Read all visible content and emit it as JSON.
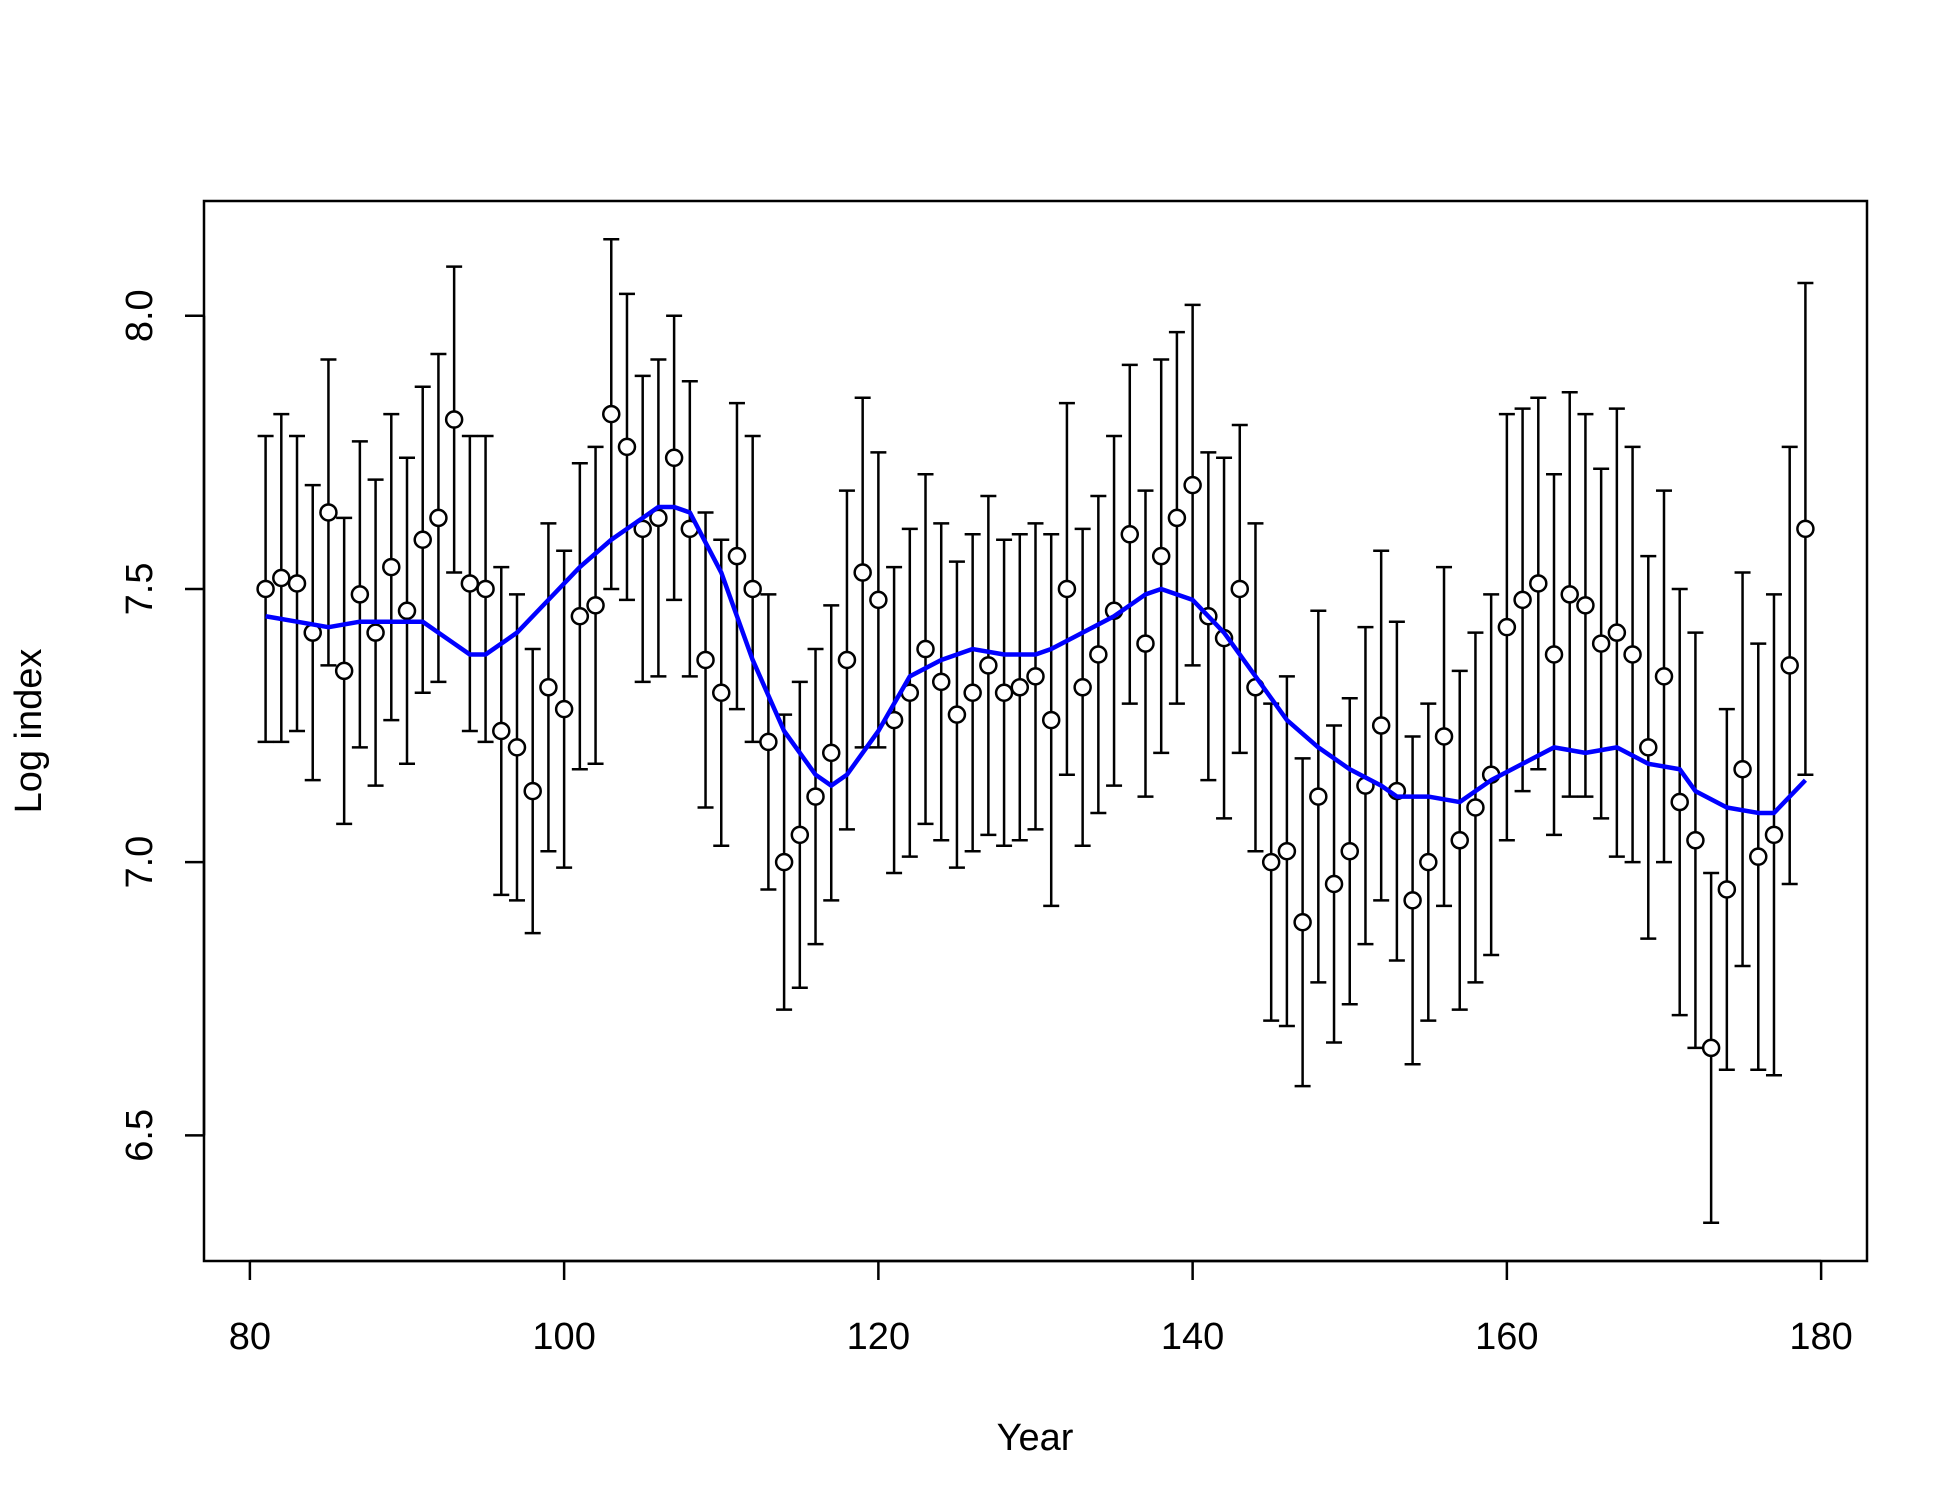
{
  "chart_data": {
    "type": "scatter",
    "xlabel": "Year",
    "ylabel": "Log index",
    "xlim": [
      77.08,
      182.92
    ],
    "ylim": [
      6.27,
      8.21
    ],
    "xticks": [
      80,
      100,
      120,
      140,
      160,
      180
    ],
    "yticks": [
      {
        "value": 6.5,
        "label": "6.5"
      },
      {
        "value": 7,
        "label": "7.0"
      },
      {
        "value": 7.5,
        "label": "7.5"
      },
      {
        "value": 8,
        "label": "8.0"
      }
    ],
    "series": [
      {
        "type": "errorbar",
        "color": "#000000",
        "marker_fill": "#ffffff",
        "x": [
          81,
          82,
          83,
          84,
          85,
          86,
          87,
          88,
          89,
          90,
          91,
          92,
          93,
          94,
          95,
          96,
          97,
          98,
          99,
          100,
          101,
          102,
          103,
          104,
          105,
          106,
          107,
          108,
          109,
          110,
          111,
          112,
          113,
          114,
          115,
          116,
          117,
          118,
          119,
          120,
          121,
          122,
          123,
          124,
          125,
          126,
          127,
          128,
          129,
          130,
          131,
          132,
          133,
          134,
          135,
          136,
          137,
          138,
          139,
          140,
          141,
          142,
          143,
          144,
          145,
          146,
          147,
          148,
          149,
          150,
          151,
          152,
          153,
          154,
          155,
          156,
          157,
          158,
          159,
          160,
          161,
          162,
          163,
          164,
          165,
          166,
          167,
          168,
          169,
          170,
          171,
          172,
          173,
          174,
          175,
          176,
          177,
          178,
          179
        ],
        "values": [
          7.5,
          7.52,
          7.51,
          7.42,
          7.64,
          7.35,
          7.49,
          7.42,
          7.54,
          7.46,
          7.59,
          7.63,
          7.81,
          7.51,
          7.5,
          7.24,
          7.21,
          7.13,
          7.32,
          7.28,
          7.45,
          7.47,
          7.82,
          7.76,
          7.61,
          7.63,
          7.74,
          7.61,
          7.37,
          7.31,
          7.56,
          7.5,
          7.22,
          7.0,
          7.05,
          7.12,
          7.2,
          7.37,
          7.53,
          7.48,
          7.26,
          7.31,
          7.39,
          7.33,
          7.27,
          7.31,
          7.36,
          7.31,
          7.32,
          7.34,
          7.26,
          7.5,
          7.32,
          7.38,
          7.46,
          7.6,
          7.4,
          7.56,
          7.63,
          7.69,
          7.45,
          7.41,
          7.5,
          7.32,
          7.0,
          7.02,
          6.89,
          7.12,
          6.96,
          7.02,
          7.14,
          7.25,
          7.13,
          6.93,
          7.0,
          7.23,
          7.04,
          7.1,
          7.16,
          7.43,
          7.48,
          7.51,
          7.38,
          7.49,
          7.47,
          7.4,
          7.42,
          7.38,
          7.21,
          7.34,
          7.11,
          7.04,
          6.66,
          6.95,
          7.17,
          7.01,
          7.05,
          7.36,
          7.61
        ],
        "errors": [
          0.28,
          0.3,
          0.27,
          0.27,
          0.28,
          0.28,
          0.28,
          0.28,
          0.28,
          0.28,
          0.28,
          0.3,
          0.28,
          0.27,
          0.28,
          0.3,
          0.28,
          0.26,
          0.3,
          0.29,
          0.28,
          0.29,
          0.32,
          0.28,
          0.28,
          0.29,
          0.26,
          0.27,
          0.27,
          0.28,
          0.28,
          0.28,
          0.27,
          0.27,
          0.28,
          0.27,
          0.27,
          0.31,
          0.32,
          0.27,
          0.28,
          0.3,
          0.32,
          0.29,
          0.28,
          0.29,
          0.31,
          0.28,
          0.28,
          0.28,
          0.34,
          0.34,
          0.29,
          0.29,
          0.32,
          0.31,
          0.28,
          0.36,
          0.34,
          0.33,
          0.3,
          0.33,
          0.3,
          0.3,
          0.29,
          0.32,
          0.3,
          0.34,
          0.29,
          0.28,
          0.29,
          0.32,
          0.31,
          0.3,
          0.29,
          0.31,
          0.31,
          0.32,
          0.33,
          0.39,
          0.35,
          0.34,
          0.33,
          0.37,
          0.35,
          0.32,
          0.41,
          0.38,
          0.35,
          0.34,
          0.39,
          0.38,
          0.32,
          0.33,
          0.36,
          0.39,
          0.44,
          0.4,
          0.45
        ]
      },
      {
        "type": "line",
        "color": "#0000ff",
        "x": [
          81,
          83,
          85,
          87,
          89,
          91,
          93,
          94,
          95,
          97,
          99,
          101,
          103,
          105,
          106,
          107,
          108,
          110,
          112,
          114,
          116,
          117,
          118,
          120,
          122,
          124,
          126,
          128,
          130,
          131,
          133,
          135,
          137,
          138,
          140,
          142,
          144,
          146,
          148,
          150,
          152,
          153,
          155,
          157,
          159,
          161,
          163,
          165,
          167,
          169,
          171,
          172,
          174,
          176,
          177,
          179
        ],
        "values": [
          7.45,
          7.44,
          7.43,
          7.44,
          7.44,
          7.44,
          7.4,
          7.38,
          7.38,
          7.42,
          7.48,
          7.54,
          7.59,
          7.63,
          7.65,
          7.65,
          7.64,
          7.53,
          7.37,
          7.24,
          7.16,
          7.14,
          7.16,
          7.24,
          7.34,
          7.37,
          7.39,
          7.38,
          7.38,
          7.39,
          7.42,
          7.45,
          7.49,
          7.5,
          7.48,
          7.42,
          7.34,
          7.26,
          7.21,
          7.17,
          7.14,
          7.12,
          7.12,
          7.11,
          7.15,
          7.18,
          7.21,
          7.2,
          7.21,
          7.18,
          7.17,
          7.13,
          7.1,
          7.09,
          7.09,
          7.15
        ]
      }
    ]
  }
}
